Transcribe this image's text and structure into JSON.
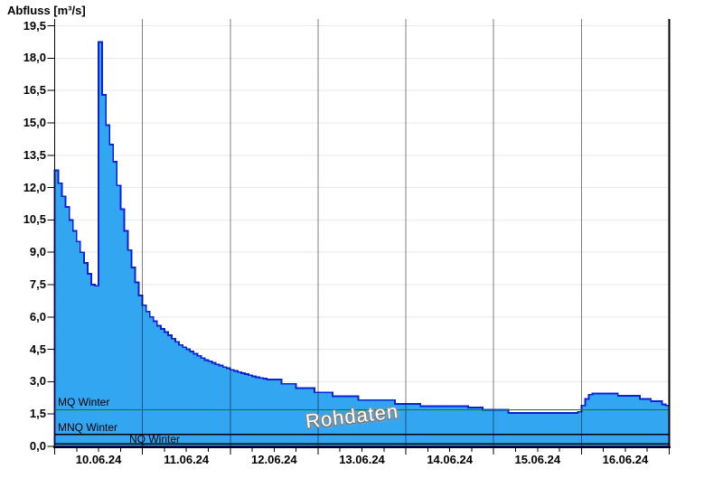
{
  "title": "Abfluss [m³/s]",
  "watermark": "Rohdaten",
  "chart_data": {
    "type": "area",
    "title": "Abfluss [m³/s]",
    "xlabel": "",
    "ylabel": "Abfluss [m³/s]",
    "ylim": [
      0,
      19.82
    ],
    "y_tick_step": 1.5,
    "y_tick_labels": [
      "0,0",
      "1,5",
      "3,0",
      "4,5",
      "6,0",
      "7,5",
      "9,0",
      "10,5",
      "12,0",
      "13,5",
      "15,0",
      "16,5",
      "18,0",
      "19,5"
    ],
    "x_labels": [
      "10.06.24",
      "11.06.24",
      "12.06.24",
      "13.06.24",
      "14.06.24",
      "15.06.24",
      "16.06.24"
    ],
    "x_range_hours": [
      0,
      168
    ],
    "x_minor_tick_hours": 6,
    "x_day_hours": 24,
    "grid": {
      "horizontal": true,
      "vertical_at_day_boundaries": true
    },
    "series": [
      {
        "name": "Rohdaten",
        "unit": "m³/s",
        "start": "10.06.24 00:00",
        "interval_hours": 1,
        "values": [
          12.8,
          12.2,
          11.6,
          11.1,
          10.5,
          10.0,
          9.5,
          9.0,
          8.5,
          8.0,
          7.5,
          7.45,
          18.75,
          16.3,
          14.9,
          14.0,
          13.2,
          12.1,
          11.0,
          10.0,
          9.1,
          8.3,
          7.6,
          7.0,
          6.55,
          6.25,
          6.0,
          5.8,
          5.6,
          5.45,
          5.3,
          5.15,
          5.0,
          4.85,
          4.7,
          4.6,
          4.5,
          4.4,
          4.3,
          4.2,
          4.1,
          4.0,
          3.95,
          3.88,
          3.8,
          3.75,
          3.68,
          3.62,
          3.55,
          3.5,
          3.45,
          3.4,
          3.35,
          3.3,
          3.25,
          3.2,
          3.17,
          3.14,
          3.1,
          3.1,
          3.1,
          3.1,
          2.9,
          2.9,
          2.9,
          2.9,
          2.7,
          2.7,
          2.7,
          2.7,
          2.7,
          2.5,
          2.5,
          2.5,
          2.5,
          2.5,
          2.32,
          2.32,
          2.32,
          2.32,
          2.32,
          2.32,
          2.32,
          2.15,
          2.15,
          2.15,
          2.15,
          2.15,
          2.15,
          2.15,
          2.15,
          2.15,
          2.15,
          1.97,
          1.97,
          1.97,
          1.97,
          1.97,
          1.97,
          1.97,
          1.87,
          1.87,
          1.87,
          1.87,
          1.87,
          1.87,
          1.87,
          1.87,
          1.87,
          1.87,
          1.87,
          1.87,
          1.87,
          1.8,
          1.8,
          1.8,
          1.8,
          1.7,
          1.7,
          1.7,
          1.7,
          1.7,
          1.7,
          1.7,
          1.55,
          1.55,
          1.55,
          1.55,
          1.55,
          1.55,
          1.55,
          1.55,
          1.55,
          1.55,
          1.55,
          1.55,
          1.55,
          1.55,
          1.55,
          1.55,
          1.55,
          1.55,
          1.55,
          1.6,
          1.9,
          2.2,
          2.4,
          2.45,
          2.45,
          2.45,
          2.45,
          2.45,
          2.45,
          2.45,
          2.35,
          2.35,
          2.35,
          2.35,
          2.35,
          2.35,
          2.2,
          2.2,
          2.2,
          2.1,
          2.1,
          2.1,
          1.95,
          1.9,
          1.85
        ]
      }
    ],
    "reference_lines": [
      {
        "label": "MQ Winter",
        "value": 1.7,
        "color": "#008000"
      },
      {
        "label": "MNQ Winter",
        "value": 0.55,
        "color": "#000000"
      },
      {
        "label": "NQ Winter",
        "value": 0.11,
        "color": "#000000"
      }
    ],
    "colors": {
      "area_fill": "#33a6f2",
      "area_stroke": "#0b22d4",
      "grid_horizontal": "#eaeaea",
      "grid_vertical": "rgba(0,0,0,0.5)",
      "axis": "#000000",
      "mq_line_green": "#008000"
    },
    "legend_position": "none"
  }
}
